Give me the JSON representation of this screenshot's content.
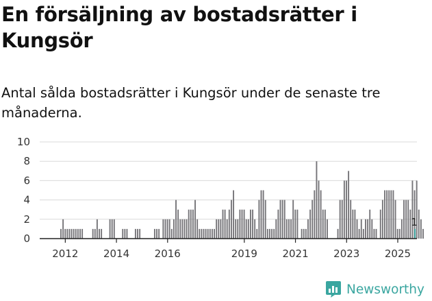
{
  "header": {
    "title": "En försäljning av bostadsrätter i Kungsör",
    "subtitle": "Antal sålda bostadsrätter i Kungsör under de senaste tre månaderna."
  },
  "brand": {
    "name": "Newsworthy"
  },
  "colors": {
    "bar": "#767579",
    "highlight": "#3aa6a0",
    "grid": "#d9d9d9",
    "axis": "#222222"
  },
  "chart_data": {
    "type": "bar",
    "title": "En försäljning av bostadsrätter i Kungsör",
    "subtitle": "Antal sålda bostadsrätter i Kungsör under de senaste tre månaderna.",
    "xlabel": "",
    "ylabel": "",
    "ylim": [
      0,
      10
    ],
    "yticks": [
      0,
      2,
      4,
      6,
      8,
      10
    ],
    "xticks": [
      {
        "x": 2012.0,
        "label": "2012"
      },
      {
        "x": 2014.0,
        "label": "2014"
      },
      {
        "x": 2016.0,
        "label": "2016"
      },
      {
        "x": 2019.0,
        "label": "2019"
      },
      {
        "x": 2021.0,
        "label": "2021"
      },
      {
        "x": 2023.0,
        "label": "2023"
      },
      {
        "x": 2025.0,
        "label": "2025"
      }
    ],
    "grid": true,
    "x_start": 2011.0,
    "x_end": 2025.75,
    "period_length": 0.0833,
    "series": [
      {
        "name": "Antal sålda bostadsrätter",
        "start": 2011.83,
        "values": [
          1,
          2,
          1,
          1,
          1,
          1,
          1,
          1,
          1,
          1,
          1,
          0,
          0,
          0,
          0,
          1,
          1,
          2,
          1,
          1,
          0,
          0,
          0,
          2,
          2,
          2,
          0,
          0,
          0,
          1,
          1,
          1,
          0,
          0,
          0,
          1,
          1,
          1,
          0,
          0,
          0,
          0,
          0,
          0,
          1,
          1,
          1,
          0,
          2,
          2,
          2,
          2,
          1,
          2,
          4,
          3,
          2,
          2,
          2,
          2,
          3,
          3,
          3,
          4,
          2,
          1,
          1,
          1,
          1,
          1,
          1,
          1,
          1,
          2,
          2,
          2,
          3,
          3,
          2,
          3,
          4,
          5,
          2,
          2,
          3,
          3,
          3,
          2,
          2,
          3,
          3,
          2,
          1,
          4,
          5,
          5,
          4,
          1,
          1,
          1,
          1,
          2,
          3,
          4,
          4,
          4,
          2,
          2,
          2,
          4,
          3,
          3,
          0,
          1,
          1,
          1,
          2,
          3,
          4,
          5,
          8,
          6,
          5,
          3,
          3,
          2,
          0,
          0,
          0,
          0,
          1,
          4,
          4,
          6,
          6,
          7,
          4,
          3,
          3,
          2,
          1,
          2,
          1,
          2,
          2,
          3,
          2,
          1,
          1,
          0,
          3,
          4,
          5,
          5,
          5,
          5,
          5,
          4,
          1,
          1,
          2,
          4,
          4,
          4,
          3,
          6,
          5,
          6,
          3,
          2,
          1
        ]
      }
    ],
    "highlight": {
      "x": 2025.67,
      "value": 1,
      "label": "1"
    }
  }
}
